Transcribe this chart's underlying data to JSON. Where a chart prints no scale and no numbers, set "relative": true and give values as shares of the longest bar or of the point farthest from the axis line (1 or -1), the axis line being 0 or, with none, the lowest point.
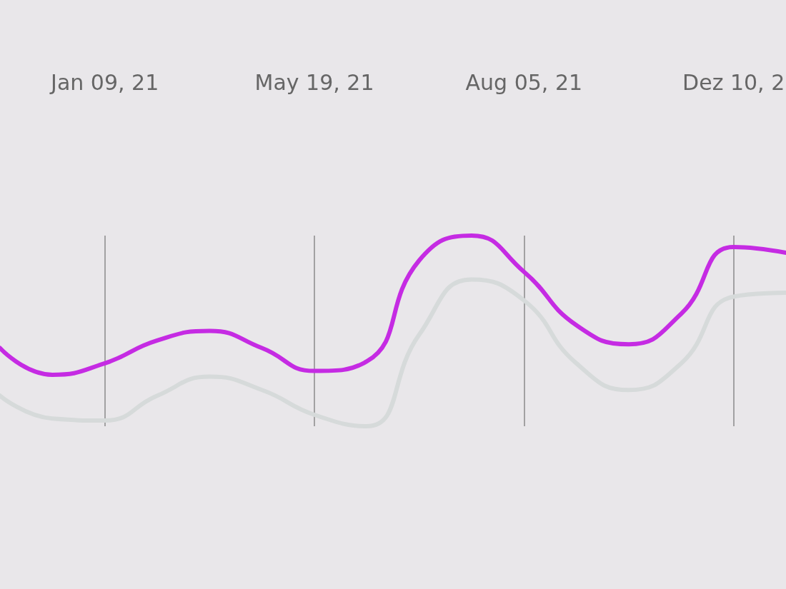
{
  "chart_data": {
    "type": "line",
    "relative": true,
    "grid": "x",
    "categories": [
      null,
      null,
      "Jan 09, 21",
      null,
      null,
      null,
      "May 19, 21",
      null,
      null,
      null,
      "Aug 05, 21",
      null,
      null,
      null,
      "Dez 10, 2",
      null
    ],
    "series": [
      {
        "color": "#d6dada",
        "values": [
          0.16,
          0.04,
          0.03,
          0.16,
          0.26,
          0.19,
          0.06,
          0,
          0.48,
          0.77,
          0.66,
          0.33,
          0.19,
          0.33,
          0.68,
          0.7
        ]
      },
      {
        "color": "#c52be3",
        "values": [
          0.41,
          0.27,
          0.33,
          0.45,
          0.5,
          0.41,
          0.29,
          0.34,
          0.87,
          1,
          0.81,
          0.53,
          0.43,
          0.59,
          0.94,
          0.91
        ]
      }
    ]
  }
}
